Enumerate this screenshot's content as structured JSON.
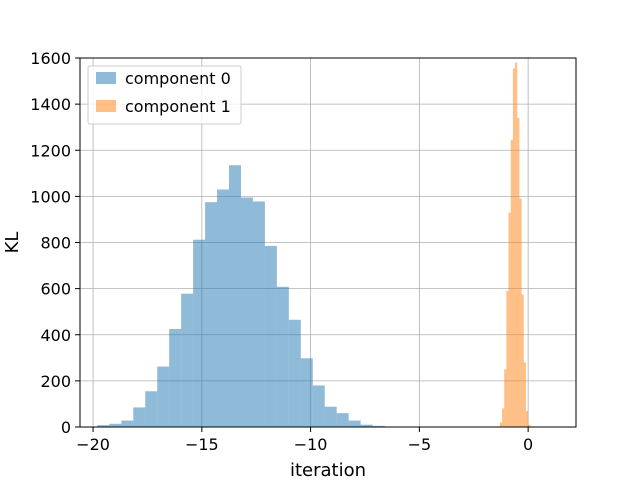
{
  "chart_data": {
    "type": "histogram",
    "title": "",
    "xlabel": "iteration",
    "ylabel": "KL",
    "xlim": [
      -20.6,
      2.2
    ],
    "ylim": [
      0,
      1600
    ],
    "xticks": [
      -20,
      -15,
      -10,
      -5,
      0
    ],
    "xtick_labels": [
      "−20",
      "−15",
      "−10",
      "−5",
      "0"
    ],
    "yticks": [
      0,
      200,
      400,
      600,
      800,
      1000,
      1200,
      1400,
      1600
    ],
    "ytick_labels": [
      "0",
      "200",
      "400",
      "600",
      "800",
      "1000",
      "1200",
      "1400",
      "1600"
    ],
    "grid": true,
    "legend_position": "top-left",
    "series": [
      {
        "name": "component 0",
        "color": "#1f77b4",
        "alpha": 0.5,
        "bin_edges": [
          -19.8,
          -19.25,
          -18.7,
          -18.15,
          -17.6,
          -17.05,
          -16.5,
          -15.95,
          -15.4,
          -14.85,
          -14.3,
          -13.75,
          -13.2,
          -12.65,
          -12.1,
          -11.55,
          -11.0,
          -10.45,
          -9.9,
          -9.35,
          -8.8,
          -8.25,
          -7.7,
          -7.15,
          -6.6,
          -6.05
        ],
        "counts": [
          8,
          14,
          28,
          85,
          155,
          262,
          425,
          578,
          812,
          975,
          1030,
          1135,
          995,
          978,
          785,
          608,
          465,
          298,
          180,
          88,
          60,
          28,
          10,
          5,
          2
        ]
      },
      {
        "name": "component 1",
        "color": "#ff7f0e",
        "alpha": 0.5,
        "bin_edges": [
          -1.3,
          -1.2,
          -1.1,
          -1.0,
          -0.9,
          -0.8,
          -0.7,
          -0.6,
          -0.5,
          -0.4,
          -0.3,
          -0.2,
          -0.1,
          0.0,
          0.1,
          0.2
        ],
        "counts": [
          20,
          80,
          250,
          590,
          930,
          1245,
          1555,
          1580,
          1340,
          990,
          575,
          280,
          70,
          10,
          2
        ]
      }
    ]
  }
}
